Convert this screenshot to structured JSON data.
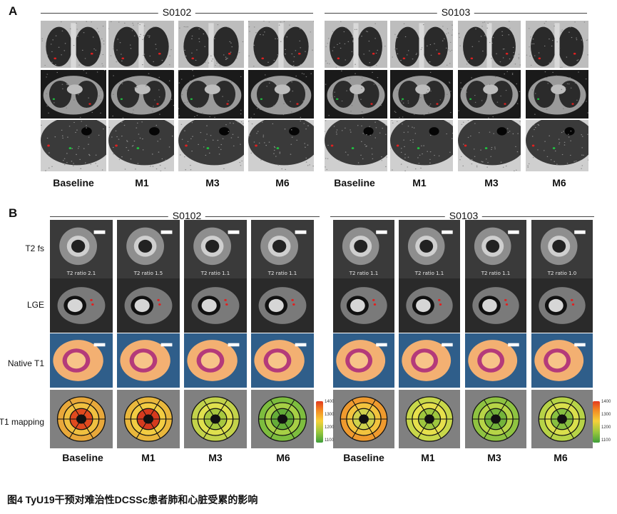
{
  "panels": {
    "A": {
      "letter": "A",
      "patients": [
        "S0102",
        "S0103"
      ],
      "timepoints": [
        "Baseline",
        "M1",
        "M3",
        "M6"
      ]
    },
    "B": {
      "letter": "B",
      "patients": [
        "S0102",
        "S0103"
      ],
      "row_labels": [
        "T2 fs",
        "LGE",
        "Native T1",
        "T1 mapping"
      ],
      "timepoints": [
        "Baseline",
        "M1",
        "M3",
        "M6"
      ],
      "t2_ratios": {
        "S0102": [
          "T2 ratio 2.1",
          "T2 ratio 1.5",
          "T2 ratio 1.1",
          "T2 ratio 1.1"
        ],
        "S0103": [
          "T2 ratio 1.1",
          "T2 ratio 1.1",
          "T2 ratio 1.1",
          "T2 ratio 1.0"
        ]
      },
      "scale_ticks": [
        "1400",
        "1300",
        "1200",
        "1100"
      ]
    }
  },
  "caption": "图4  TyU19干预对难治性DCSSc患者肺和心脏受累的影响"
}
